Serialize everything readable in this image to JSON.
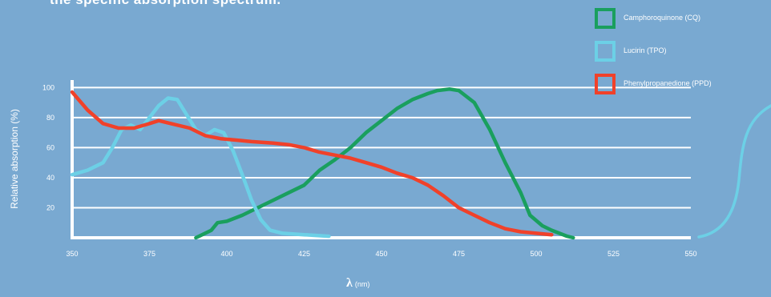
{
  "heading_text": "the specific absorption spectrum.",
  "colors": {
    "background": "#79a9d1",
    "grid": "#ffffff",
    "axis": "#ffffff"
  },
  "legend": [
    {
      "label": "Camphoroquinone (CQ)",
      "color": "#1a9f5e"
    },
    {
      "label": "Lucirin (TPO)",
      "color": "#6cd0e6"
    },
    {
      "label": "Phenylpropanedione (PPD)",
      "color": "#f0412a"
    }
  ],
  "chart_data": {
    "type": "line",
    "title": "",
    "xlabel_symbol": "λ",
    "xlabel_unit": "(nm)",
    "ylabel": "Relative absorption (%)",
    "xlim": [
      350,
      550
    ],
    "ylim": [
      0,
      105
    ],
    "x_ticks": [
      350,
      375,
      400,
      425,
      450,
      475,
      500,
      525,
      550
    ],
    "y_ticks": [
      20,
      40,
      60,
      80,
      100
    ],
    "grid": true,
    "legend_position": "top-right",
    "series": [
      {
        "name": "Camphoroquinone (CQ)",
        "color": "#1a9f5e",
        "points": [
          [
            390,
            0
          ],
          [
            395,
            5
          ],
          [
            397,
            10
          ],
          [
            400,
            11
          ],
          [
            405,
            15
          ],
          [
            410,
            20
          ],
          [
            415,
            25
          ],
          [
            420,
            30
          ],
          [
            425,
            35
          ],
          [
            430,
            45
          ],
          [
            435,
            52
          ],
          [
            440,
            60
          ],
          [
            445,
            70
          ],
          [
            450,
            78
          ],
          [
            455,
            86
          ],
          [
            460,
            92
          ],
          [
            465,
            96
          ],
          [
            468,
            98
          ],
          [
            472,
            99
          ],
          [
            475,
            98
          ],
          [
            480,
            90
          ],
          [
            485,
            72
          ],
          [
            490,
            50
          ],
          [
            495,
            30
          ],
          [
            498,
            15
          ],
          [
            502,
            8
          ],
          [
            505,
            5
          ],
          [
            510,
            1
          ],
          [
            512,
            0
          ]
        ]
      },
      {
        "name": "Lucirin (TPO)",
        "color": "#6cd0e6",
        "points": [
          [
            350,
            42
          ],
          [
            355,
            45
          ],
          [
            360,
            50
          ],
          [
            363,
            60
          ],
          [
            366,
            72
          ],
          [
            369,
            75
          ],
          [
            372,
            72
          ],
          [
            375,
            80
          ],
          [
            378,
            88
          ],
          [
            381,
            93
          ],
          [
            384,
            92
          ],
          [
            387,
            82
          ],
          [
            390,
            72
          ],
          [
            393,
            68
          ],
          [
            396,
            72
          ],
          [
            399,
            70
          ],
          [
            402,
            58
          ],
          [
            405,
            42
          ],
          [
            408,
            25
          ],
          [
            411,
            12
          ],
          [
            414,
            5
          ],
          [
            418,
            3
          ],
          [
            425,
            2
          ],
          [
            433,
            1
          ]
        ]
      },
      {
        "name": "Phenylpropanedione (PPD)",
        "color": "#f0412a",
        "points": [
          [
            350,
            97
          ],
          [
            355,
            85
          ],
          [
            360,
            76
          ],
          [
            365,
            73
          ],
          [
            370,
            73
          ],
          [
            375,
            76
          ],
          [
            378,
            78
          ],
          [
            382,
            76
          ],
          [
            388,
            73
          ],
          [
            393,
            68
          ],
          [
            398,
            66
          ],
          [
            403,
            65
          ],
          [
            408,
            64
          ],
          [
            415,
            63
          ],
          [
            420,
            62
          ],
          [
            425,
            60
          ],
          [
            430,
            57
          ],
          [
            435,
            55
          ],
          [
            440,
            53
          ],
          [
            445,
            50
          ],
          [
            450,
            47
          ],
          [
            455,
            43
          ],
          [
            460,
            40
          ],
          [
            465,
            35
          ],
          [
            470,
            28
          ],
          [
            475,
            20
          ],
          [
            480,
            15
          ],
          [
            485,
            10
          ],
          [
            490,
            6
          ],
          [
            495,
            4
          ],
          [
            500,
            3
          ],
          [
            505,
            2
          ]
        ]
      }
    ]
  }
}
